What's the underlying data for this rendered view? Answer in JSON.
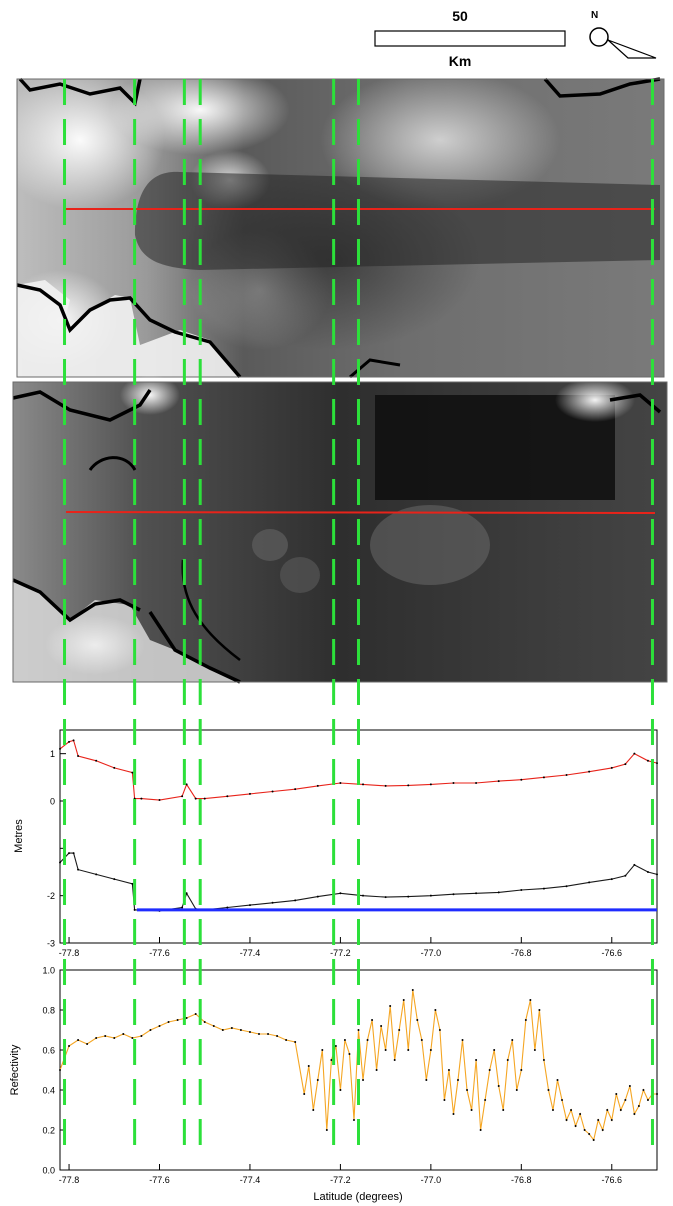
{
  "scale_bar": {
    "distance": "50",
    "unit": "Km"
  },
  "north_arrow": {
    "label": "N"
  },
  "colors": {
    "track_line": "#e8231a",
    "cut_lines": "#2ce03a",
    "elevation_upper": "#e8231a",
    "elevation_lower": "#1a1a1a",
    "reference_level": "#1f2cff",
    "reflectivity": "#f5a623",
    "coastline": "#000000"
  },
  "panels": {
    "top_image": {
      "kind": "grayscale satellite image with red track line"
    },
    "middle_image": {
      "kind": "grayscale SAR image with red track line"
    }
  },
  "chart_data": [
    {
      "type": "line",
      "ylabel": "Metres",
      "xlabel": "",
      "xlim": [
        -77.82,
        -76.5
      ],
      "ylim": [
        -3,
        1.5
      ],
      "x_ticks": [
        -77.8,
        -77.6,
        -77.4,
        -77.2,
        -77.0,
        -76.8,
        -76.6
      ],
      "x_tick_labels": [
        "-77.8",
        "-77.6",
        "-77.4",
        "-77.2",
        "-77.0",
        "-76.8",
        "-76.6"
      ],
      "y_ticks": [
        -3,
        -2,
        -1,
        0,
        1
      ],
      "y_tick_labels": [
        "-3",
        "-2",
        "",
        "0",
        "1"
      ],
      "series": [
        {
          "color": "#e8231a",
          "x": [
            -77.82,
            -77.8,
            -77.79,
            -77.78,
            -77.74,
            -77.7,
            -77.66,
            -77.655,
            -77.64,
            -77.6,
            -77.55,
            -77.54,
            -77.52,
            -77.5,
            -77.45,
            -77.4,
            -77.35,
            -77.3,
            -77.25,
            -77.2,
            -77.15,
            -77.1,
            -77.05,
            -77.0,
            -76.95,
            -76.9,
            -76.85,
            -76.8,
            -76.75,
            -76.7,
            -76.65,
            -76.6,
            -76.57,
            -76.55,
            -76.52,
            -76.5
          ],
          "y": [
            1.1,
            1.25,
            1.28,
            0.95,
            0.85,
            0.7,
            0.6,
            0.05,
            0.05,
            0.02,
            0.1,
            0.35,
            0.05,
            0.05,
            0.1,
            0.15,
            0.2,
            0.25,
            0.32,
            0.38,
            0.35,
            0.32,
            0.33,
            0.35,
            0.38,
            0.38,
            0.42,
            0.45,
            0.5,
            0.55,
            0.62,
            0.7,
            0.78,
            1.0,
            0.85,
            0.8
          ]
        },
        {
          "color": "#1a1a1a",
          "x": [
            -77.82,
            -77.8,
            -77.79,
            -77.78,
            -77.74,
            -77.7,
            -77.66,
            -77.655,
            -77.64,
            -77.6,
            -77.55,
            -77.54,
            -77.52,
            -77.5,
            -77.45,
            -77.4,
            -77.35,
            -77.3,
            -77.25,
            -77.2,
            -77.15,
            -77.1,
            -77.05,
            -77.0,
            -76.95,
            -76.9,
            -76.85,
            -76.8,
            -76.75,
            -76.7,
            -76.65,
            -76.6,
            -76.57,
            -76.55,
            -76.52,
            -76.5
          ],
          "y": [
            -1.3,
            -1.1,
            -1.1,
            -1.45,
            -1.55,
            -1.65,
            -1.75,
            -2.3,
            -2.3,
            -2.32,
            -2.25,
            -1.95,
            -2.28,
            -2.3,
            -2.25,
            -2.2,
            -2.15,
            -2.1,
            -2.02,
            -1.95,
            -2.0,
            -2.03,
            -2.02,
            -2.0,
            -1.97,
            -1.95,
            -1.93,
            -1.88,
            -1.85,
            -1.8,
            -1.72,
            -1.65,
            -1.58,
            -1.35,
            -1.5,
            -1.55
          ]
        },
        {
          "color": "#1f2cff",
          "x": [
            -77.65,
            -76.5
          ],
          "y": [
            -2.3,
            -2.3
          ]
        }
      ]
    },
    {
      "type": "line",
      "ylabel": "Refectivity",
      "xlabel": "Latitude (degrees)",
      "xlim": [
        -77.82,
        -76.5
      ],
      "ylim": [
        0,
        1
      ],
      "x_ticks": [
        -77.8,
        -77.6,
        -77.4,
        -77.2,
        -77.0,
        -76.8,
        -76.6
      ],
      "x_tick_labels": [
        "-77.8",
        "-77.6",
        "-77.4",
        "-77.2",
        "-77.0",
        "-76.8",
        "-76.6"
      ],
      "y_ticks": [
        0,
        0.2,
        0.4,
        0.6,
        0.8,
        1.0
      ],
      "y_tick_labels": [
        "0.0",
        "0.2",
        "0.4",
        "0.6",
        "0.8",
        "1.0"
      ],
      "series": [
        {
          "color": "#f5a623",
          "x": [
            -77.82,
            -77.8,
            -77.78,
            -77.76,
            -77.74,
            -77.72,
            -77.7,
            -77.68,
            -77.66,
            -77.64,
            -77.62,
            -77.6,
            -77.58,
            -77.56,
            -77.54,
            -77.52,
            -77.5,
            -77.48,
            -77.46,
            -77.44,
            -77.42,
            -77.4,
            -77.38,
            -77.36,
            -77.34,
            -77.32,
            -77.3,
            -77.28,
            -77.27,
            -77.26,
            -77.25,
            -77.24,
            -77.23,
            -77.22,
            -77.21,
            -77.2,
            -77.19,
            -77.18,
            -77.17,
            -77.16,
            -77.15,
            -77.14,
            -77.13,
            -77.12,
            -77.11,
            -77.1,
            -77.09,
            -77.08,
            -77.07,
            -77.06,
            -77.05,
            -77.04,
            -77.03,
            -77.02,
            -77.01,
            -77.0,
            -76.99,
            -76.98,
            -76.97,
            -76.96,
            -76.95,
            -76.94,
            -76.93,
            -76.92,
            -76.91,
            -76.9,
            -76.89,
            -76.88,
            -76.87,
            -76.86,
            -76.85,
            -76.84,
            -76.83,
            -76.82,
            -76.81,
            -76.8,
            -76.79,
            -76.78,
            -76.77,
            -76.76,
            -76.75,
            -76.74,
            -76.73,
            -76.72,
            -76.71,
            -76.7,
            -76.69,
            -76.68,
            -76.67,
            -76.66,
            -76.65,
            -76.64,
            -76.63,
            -76.62,
            -76.61,
            -76.6,
            -76.59,
            -76.58,
            -76.57,
            -76.56,
            -76.55,
            -76.54,
            -76.53,
            -76.52,
            -76.51,
            -76.5
          ],
          "y": [
            0.5,
            0.62,
            0.65,
            0.63,
            0.66,
            0.67,
            0.66,
            0.68,
            0.66,
            0.67,
            0.7,
            0.72,
            0.74,
            0.75,
            0.76,
            0.78,
            0.74,
            0.72,
            0.7,
            0.71,
            0.7,
            0.69,
            0.68,
            0.68,
            0.67,
            0.65,
            0.64,
            0.38,
            0.52,
            0.3,
            0.45,
            0.6,
            0.2,
            0.55,
            0.62,
            0.4,
            0.65,
            0.58,
            0.25,
            0.7,
            0.45,
            0.65,
            0.75,
            0.5,
            0.72,
            0.6,
            0.82,
            0.55,
            0.7,
            0.85,
            0.6,
            0.9,
            0.75,
            0.65,
            0.45,
            0.6,
            0.8,
            0.7,
            0.35,
            0.5,
            0.28,
            0.45,
            0.65,
            0.4,
            0.3,
            0.55,
            0.2,
            0.35,
            0.5,
            0.6,
            0.42,
            0.3,
            0.55,
            0.65,
            0.4,
            0.5,
            0.75,
            0.85,
            0.6,
            0.8,
            0.55,
            0.4,
            0.3,
            0.45,
            0.35,
            0.25,
            0.3,
            0.22,
            0.28,
            0.2,
            0.18,
            0.15,
            0.25,
            0.2,
            0.3,
            0.25,
            0.38,
            0.3,
            0.35,
            0.42,
            0.28,
            0.32,
            0.4,
            0.35,
            0.38,
            0.38
          ]
        }
      ]
    }
  ],
  "cut_lines_x": [
    -77.81,
    -77.655,
    -77.545,
    -77.51,
    -77.215,
    -77.16,
    -76.51
  ]
}
